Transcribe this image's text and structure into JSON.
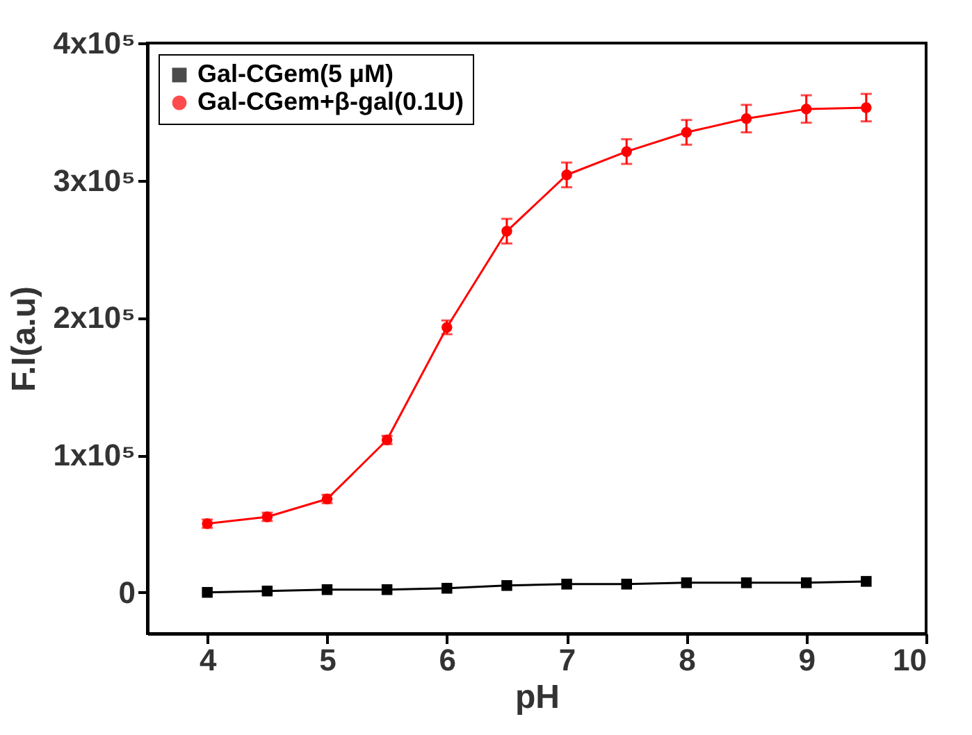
{
  "chart_data": {
    "type": "line",
    "xlabel": "pH",
    "ylabel": "F.I(a.u)",
    "x": [
      4,
      4.5,
      5,
      5.5,
      6,
      6.5,
      7,
      7.5,
      8,
      8.5,
      9,
      9.5
    ],
    "series": [
      {
        "name": "Gal-CGem(5 μM)",
        "color": "#000000",
        "marker": "square",
        "values": [
          0,
          1000,
          2000,
          2000,
          3000,
          5000,
          6000,
          6000,
          7000,
          7000,
          7000,
          8000
        ]
      },
      {
        "name": "Gal-CGem+β-gal(0.1U)",
        "color": "#ff0000",
        "marker": "circle",
        "values": [
          50000,
          55000,
          68000,
          111000,
          193000,
          263000,
          304000,
          321000,
          335000,
          345000,
          352000,
          353000
        ],
        "errors": [
          3000,
          3000,
          3000,
          3000,
          5000,
          9000,
          9000,
          9000,
          9000,
          10000,
          10000,
          10000
        ]
      }
    ],
    "xlim": [
      3.5,
      10
    ],
    "xticks": [
      4,
      5,
      6,
      7,
      8,
      9,
      10
    ],
    "ylim": [
      -30000,
      400000
    ],
    "yticks": [
      {
        "value": 0,
        "label": "0"
      },
      {
        "value": 100000,
        "label": "1x10⁵"
      },
      {
        "value": 200000,
        "label": "2x10⁵"
      },
      {
        "value": 300000,
        "label": "3x10⁵"
      },
      {
        "value": 400000,
        "label": "4x10⁵"
      }
    ],
    "legend": "top left",
    "grid": false,
    "line_style": "solid"
  }
}
